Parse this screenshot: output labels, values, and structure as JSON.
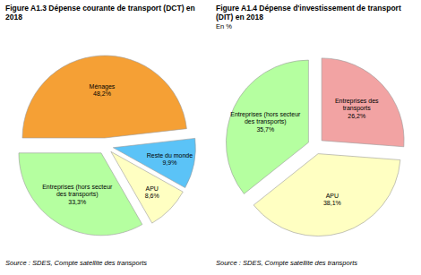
{
  "chart_data": [
    {
      "type": "pie",
      "title": "Figure A1.3 Dépense courante de transport (DCT) en 2018",
      "categories": [
        "Ménages",
        "Reste du monde",
        "APU",
        "Entreprises (hors secteur des transports)"
      ],
      "values": [
        48.2,
        9.9,
        8.6,
        33.3
      ],
      "value_labels": [
        "48,2%",
        "9,9%",
        "8,6%",
        "33,3%"
      ],
      "colors": [
        "#f5a035",
        "#5bc3f7",
        "#ffffc2",
        "#b5ffa0"
      ],
      "data_labels": true,
      "source": "Source : SDES, Compte satellite des transports"
    },
    {
      "type": "pie",
      "title": "Figure A1.4 Dépense d'investissement de transport (DIT) en 2018",
      "subtitle": "En %",
      "categories": [
        "Entreprises des transports",
        "APU",
        "Entreprises (hors secteur des transports)"
      ],
      "values": [
        26.2,
        38.1,
        35.7
      ],
      "value_labels": [
        "26,2%",
        "38,1%",
        "35,7%"
      ],
      "colors": [
        "#f2a3a3",
        "#ffffc2",
        "#b5ffa0"
      ],
      "data_labels": true,
      "source": "Source : SDES, Compte satellite des transports"
    }
  ]
}
